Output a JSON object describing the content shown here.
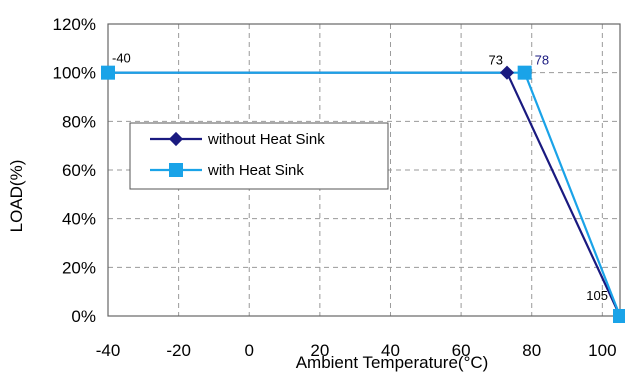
{
  "chart_data": {
    "type": "line",
    "xlabel": "Ambient Temperature",
    "xlabel_unit": "(°C)",
    "ylabel": "LOAD(%)",
    "xlim": [
      -40,
      105
    ],
    "ylim": [
      0,
      120
    ],
    "x_ticks": [
      -40,
      -20,
      0,
      20,
      40,
      60,
      80,
      100
    ],
    "x_tick_labels": [
      "-40",
      "-20",
      "0",
      "20",
      "40",
      "60",
      "80",
      "100"
    ],
    "y_ticks": [
      0,
      20,
      40,
      60,
      80,
      100,
      120
    ],
    "y_tick_labels": [
      "0%",
      "20%",
      "40%",
      "60%",
      "80%",
      "100%",
      "120%"
    ],
    "grid": true,
    "legend_position": "center-left",
    "series": [
      {
        "name": "without Heat Sink",
        "color": "#1a1a80",
        "marker": "diamond",
        "x": [
          -40,
          73,
          105
        ],
        "y": [
          100,
          100,
          0
        ]
      },
      {
        "name": "with Heat Sink",
        "color": "#1aa3e8",
        "marker": "square",
        "x": [
          -40,
          78,
          105
        ],
        "y": [
          100,
          100,
          0
        ]
      }
    ],
    "annotations": [
      {
        "text": "-40",
        "x": -40,
        "y": 100,
        "color": "#000000"
      },
      {
        "text": "73",
        "x": 73,
        "y": 100,
        "color": "#000000"
      },
      {
        "text": "78",
        "x": 78,
        "y": 100,
        "color": "#1a1a80"
      },
      {
        "text": "105",
        "x": 105,
        "y": 0,
        "color": "#000000"
      }
    ]
  }
}
